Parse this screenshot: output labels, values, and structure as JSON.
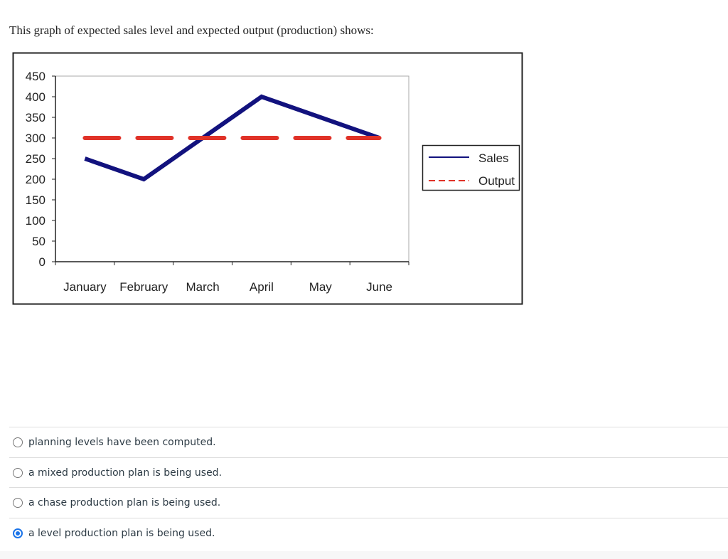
{
  "question": {
    "text": "This graph of expected sales level and expected output (production) shows:"
  },
  "chart_data": {
    "type": "line",
    "categories": [
      "January",
      "February",
      "March",
      "April",
      "May",
      "June"
    ],
    "series": [
      {
        "name": "Sales",
        "values": [
          250,
          200,
          300,
          400,
          350,
          300
        ],
        "color": "#12127e",
        "style": "solid"
      },
      {
        "name": "Output",
        "values": [
          300,
          300,
          300,
          300,
          300,
          300
        ],
        "color": "#e03228",
        "style": "dashed"
      }
    ],
    "yticks": [
      0,
      50,
      100,
      150,
      200,
      250,
      300,
      350,
      400,
      450
    ],
    "ylim": [
      0,
      450
    ],
    "grid": false,
    "legend": "right"
  },
  "options": [
    {
      "label": "planning levels have been computed.",
      "selected": false
    },
    {
      "label": "a mixed production plan is being used.",
      "selected": false
    },
    {
      "label": "a chase production plan is being used.",
      "selected": false
    },
    {
      "label": "a level production plan is being used.",
      "selected": true
    }
  ],
  "colors": {
    "selected_radio": "#1a73e8",
    "text": "#2d3b45"
  }
}
